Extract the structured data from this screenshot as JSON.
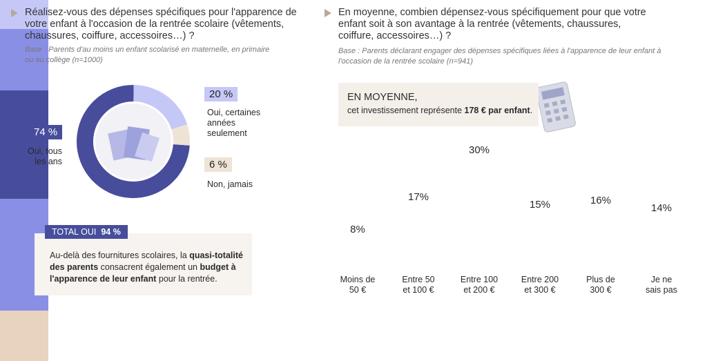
{
  "chart_data": [
    {
      "type": "pie",
      "title": "Réalisez-vous des dépenses spécifiques pour l'apparence de votre enfant à l'occasion de la rentrée scolaire (vêtements, chaussures, coiffure, accessoires…) ?",
      "subtitle": "Base : Parents d'au moins un enfant scolarisé en maternelle, en primaire ou au collège (n=1000)",
      "categories": [
        "Oui, tous\nles ans",
        "Oui, certaines\nannées\nseulement",
        "Non, jamais"
      ],
      "values": [
        74,
        20,
        6
      ],
      "value_labels": [
        "74 %",
        "20 %",
        "6 %"
      ],
      "colors": [
        "#474d9b",
        "#c5c8f7",
        "#efe3d6"
      ],
      "total_label": "TOTAL OUI",
      "total_value": 94,
      "total_value_label": "94 %",
      "note": [
        {
          "text": "Au-delà des fournitures scolaires, la ",
          "bold": false
        },
        {
          "text": "quasi-totalité des parents",
          "bold": true
        },
        {
          "text": " consacrent également un ",
          "bold": false
        },
        {
          "text": "budget à l'apparence de leur enfant",
          "bold": true
        },
        {
          "text": " pour la rentrée.",
          "bold": false
        }
      ]
    },
    {
      "type": "bar",
      "title": "En moyenne, combien dépensez-vous spécifiquement pour que votre enfant soit à son avantage à la rentrée (vêtements, chaussures, coiffure, accessoires…) ?",
      "subtitle": "Base : Parents déclarant engager des dépenses spécifiques liées à l'apparence de leur enfant à l'occasion de la rentrée scolaire (n=941)",
      "callout_heading": "EN MOYENNE,",
      "callout": [
        {
          "text": "cet investissement représente ",
          "bold": false
        },
        {
          "text": "178 € par enfant",
          "bold": true
        },
        {
          "text": ".",
          "bold": false
        }
      ],
      "categories": [
        "Moins de\n50 €",
        "Entre 50\net 100 €",
        "Entre 100\net 200 €",
        "Entre 200\net 300 €",
        "Plus de\n300 €",
        "Je ne\nsais pas"
      ],
      "values": [
        8,
        17,
        30,
        15,
        16,
        14
      ],
      "value_labels": [
        "8%",
        "17%",
        "30%",
        "15%",
        "16%",
        "14%"
      ],
      "colors": [
        "#c5c8f7",
        "#8a8fe6",
        "#474d9b",
        "#8a8fe6",
        "#8a8fe6",
        "#e8d3bf"
      ]
    }
  ]
}
